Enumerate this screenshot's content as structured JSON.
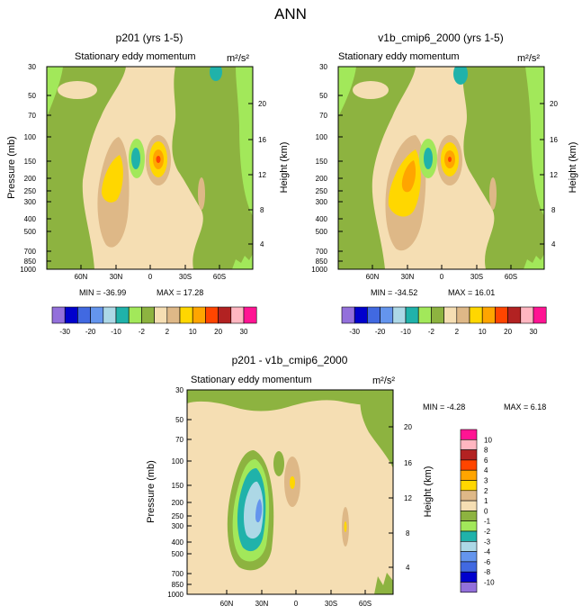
{
  "figure_title": "ANN",
  "chart_data": [
    {
      "type": "heatmap",
      "title": "p201 (yrs 1-5)",
      "subtitle": "Stationary eddy momentum",
      "units": "m²/s²",
      "ylabel": "Pressure (mb)",
      "ylabel_right": "Height (km)",
      "x_ticks": [
        "60N",
        "30N",
        "0",
        "30S",
        "60S"
      ],
      "x_values": [
        60,
        30,
        0,
        -30,
        -60
      ],
      "xlim": [
        90,
        -90
      ],
      "y_ticks": [
        "30",
        "50",
        "70",
        "100",
        "150",
        "200",
        "250",
        "300",
        "400",
        "500",
        "700",
        "850",
        "1000"
      ],
      "y_values": [
        30,
        50,
        70,
        100,
        150,
        200,
        250,
        300,
        400,
        500,
        700,
        850,
        1000
      ],
      "ylim": [
        30,
        1000
      ],
      "y_right_ticks": [
        "20",
        "16",
        "12",
        "8",
        "4"
      ],
      "y_right_values": [
        20,
        16,
        12,
        8,
        4
      ],
      "min_text": "MIN = -36.99",
      "max_text": "MAX =  17.28",
      "min": -36.99,
      "max": 17.28
    },
    {
      "type": "heatmap",
      "title": "v1b_cmip6_2000 (yrs 1-5)",
      "subtitle": "Stationary eddy momentum",
      "units": "m²/s²",
      "ylabel_right": "Height (km)",
      "x_ticks": [
        "60N",
        "30N",
        "0",
        "30S",
        "60S"
      ],
      "x_values": [
        60,
        30,
        0,
        -30,
        -60
      ],
      "xlim": [
        90,
        -90
      ],
      "y_ticks": [
        "30",
        "50",
        "70",
        "100",
        "150",
        "200",
        "250",
        "300",
        "400",
        "500",
        "700",
        "850",
        "1000"
      ],
      "y_values": [
        30,
        50,
        70,
        100,
        150,
        200,
        250,
        300,
        400,
        500,
        700,
        850,
        1000
      ],
      "ylim": [
        30,
        1000
      ],
      "y_right_ticks": [
        "20",
        "16",
        "12",
        "8",
        "4"
      ],
      "y_right_values": [
        20,
        16,
        12,
        8,
        4
      ],
      "min_text": "MIN = -34.52",
      "max_text": "MAX =  16.01",
      "min": -34.52,
      "max": 16.01
    },
    {
      "type": "heatmap",
      "title": "p201 - v1b_cmip6_2000",
      "subtitle": "Stationary eddy momentum",
      "units": "m²/s²",
      "ylabel": "Pressure (mb)",
      "ylabel_right": "Height (km)",
      "x_ticks": [
        "60N",
        "30N",
        "0",
        "30S",
        "60S"
      ],
      "x_values": [
        60,
        30,
        0,
        -30,
        -60
      ],
      "xlim": [
        90,
        -90
      ],
      "y_ticks": [
        "30",
        "50",
        "70",
        "100",
        "150",
        "200",
        "250",
        "300",
        "400",
        "500",
        "700",
        "850",
        "1000"
      ],
      "y_values": [
        30,
        50,
        70,
        100,
        150,
        200,
        250,
        300,
        400,
        500,
        700,
        850,
        1000
      ],
      "ylim": [
        30,
        1000
      ],
      "y_right_ticks": [
        "20",
        "16",
        "12",
        "8",
        "4"
      ],
      "y_right_values": [
        20,
        16,
        12,
        8,
        4
      ],
      "min_text": "MIN =  -4.28",
      "max_text": "MAX =   6.18",
      "min": -4.28,
      "max": 6.18
    }
  ],
  "colorbar_main": {
    "labels": [
      "-30",
      "-20",
      "-10",
      "-2",
      "2",
      "10",
      "20",
      "30"
    ],
    "colors": [
      "#9370db",
      "#0000cd",
      "#4169e1",
      "#6495ed",
      "#add8e6",
      "#20b2aa",
      "#a2e85a",
      "#8db340",
      "#f5deb3",
      "#deb887",
      "#ffd700",
      "#ffa500",
      "#ff4500",
      "#b22222",
      "#ffb6c1",
      "#ff1493"
    ]
  },
  "colorbar_diff": {
    "labels": [
      "10",
      "8",
      "6",
      "4",
      "3",
      "2",
      "1",
      "0",
      "-1",
      "-2",
      "-3",
      "-4",
      "-6",
      "-8",
      "-10"
    ],
    "colors": [
      "#ff1493",
      "#ffb6c1",
      "#b22222",
      "#ff4500",
      "#ffa500",
      "#ffd700",
      "#deb887",
      "#f5deb3",
      "#8db340",
      "#a2e85a",
      "#20b2aa",
      "#add8e6",
      "#6495ed",
      "#4169e1",
      "#0000cd",
      "#9370db"
    ]
  },
  "palette": {
    "tan": "#f5deb3",
    "olive": "#8db340",
    "lime": "#a2e85a",
    "beige_dark": "#deb887",
    "yellow": "#ffd700",
    "orange": "#ffa500",
    "red": "#ff4500",
    "teal": "#20b2aa",
    "lightblue": "#add8e6",
    "cornflower": "#6495ed"
  }
}
